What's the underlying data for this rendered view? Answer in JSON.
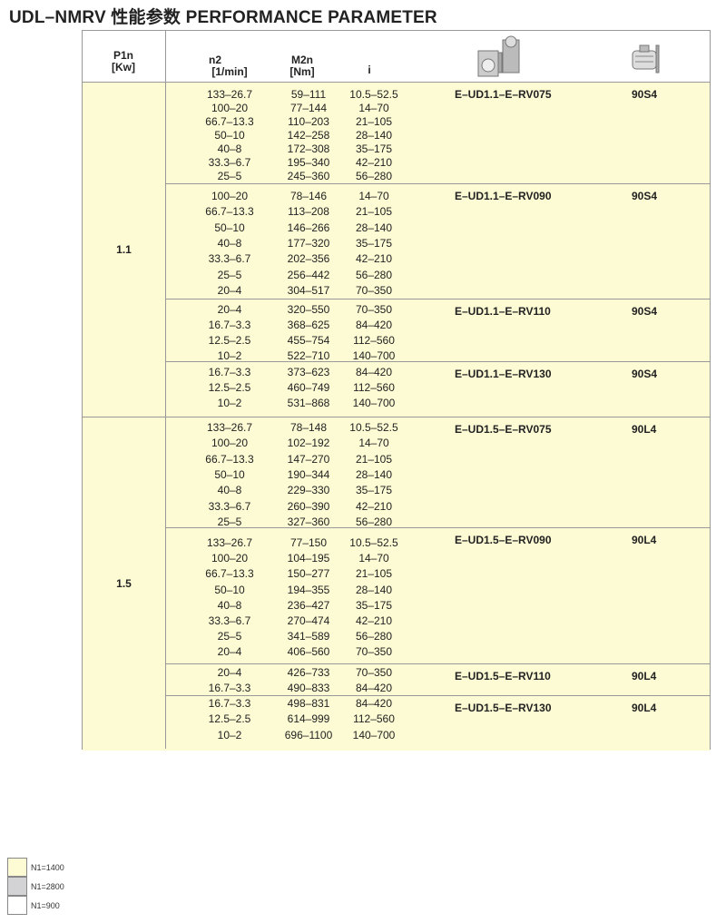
{
  "title": "UDL–NMRV 性能参数  PERFORMANCE PARAMETER",
  "header": {
    "p1n": "P1n",
    "p1n_unit": "[Kw]",
    "n2": "n2",
    "n2_unit": "[1/min]",
    "m2n": "M2n",
    "m2n_unit": "[Nm]",
    "i": "i",
    "gearbox_icon": "worm-gearbox-image",
    "motor_icon": "motor-image"
  },
  "groups": [
    {
      "p1n": "1.1",
      "blocks": [
        {
          "model": "E–UD1.1–E–RV075",
          "motor": "90S4",
          "rows": [
            [
              "133–26.7",
              "59–111",
              "10.5–52.5"
            ],
            [
              "100–20",
              "77–144",
              "14–70"
            ],
            [
              "66.7–13.3",
              "110–203",
              "21–105"
            ],
            [
              "50–10",
              "142–258",
              "28–140"
            ],
            [
              "40–8",
              "172–308",
              "35–175"
            ],
            [
              "33.3–6.7",
              "195–340",
              "42–210"
            ],
            [
              "25–5",
              "245–360",
              "56–280"
            ]
          ]
        },
        {
          "model": "E–UD1.1–E–RV090",
          "motor": "90S4",
          "rows": [
            [
              "100–20",
              "78–146",
              "14–70"
            ],
            [
              "66.7–13.3",
              "113–208",
              "21–105"
            ],
            [
              "50–10",
              "146–266",
              "28–140"
            ],
            [
              "40–8",
              "177–320",
              "35–175"
            ],
            [
              "33.3–6.7",
              "202–356",
              "42–210"
            ],
            [
              "25–5",
              "256–442",
              "56–280"
            ],
            [
              "20–4",
              "304–517",
              "70–350"
            ]
          ]
        },
        {
          "model": "E–UD1.1–E–RV110",
          "motor": "90S4",
          "rows": [
            [
              "20–4",
              "320–550",
              "70–350"
            ],
            [
              "16.7–3.3",
              "368–625",
              "84–420"
            ],
            [
              "12.5–2.5",
              "455–754",
              "112–560"
            ],
            [
              "10–2",
              "522–710",
              "140–700"
            ]
          ]
        },
        {
          "model": "E–UD1.1–E–RV130",
          "motor": "90S4",
          "rows": [
            [
              "16.7–3.3",
              "373–623",
              "84–420"
            ],
            [
              "12.5–2.5",
              "460–749",
              "112–560"
            ],
            [
              "10–2",
              "531–868",
              "140–700"
            ]
          ]
        }
      ]
    },
    {
      "p1n": "1.5",
      "blocks": [
        {
          "model": "E–UD1.5–E–RV075",
          "motor": "90L4",
          "rows": [
            [
              "133–26.7",
              "78–148",
              "10.5–52.5"
            ],
            [
              "100–20",
              "102–192",
              "14–70"
            ],
            [
              "66.7–13.3",
              "147–270",
              "21–105"
            ],
            [
              "50–10",
              "190–344",
              "28–140"
            ],
            [
              "40–8",
              "229–330",
              "35–175"
            ],
            [
              "33.3–6.7",
              "260–390",
              "42–210"
            ],
            [
              "25–5",
              "327–360",
              "56–280"
            ]
          ]
        },
        {
          "model": "E–UD1.5–E–RV090",
          "motor": "90L4",
          "rows": [
            [
              "133–26.7",
              "77–150",
              "10.5–52.5"
            ],
            [
              "100–20",
              "104–195",
              "14–70"
            ],
            [
              "66.7–13.3",
              "150–277",
              "21–105"
            ],
            [
              "50–10",
              "194–355",
              "28–140"
            ],
            [
              "40–8",
              "236–427",
              "35–175"
            ],
            [
              "33.3–6.7",
              "270–474",
              "42–210"
            ],
            [
              "25–5",
              "341–589",
              "56–280"
            ],
            [
              "20–4",
              "406–560",
              "70–350"
            ]
          ]
        },
        {
          "model": "E–UD1.5–E–RV110",
          "motor": "90L4",
          "rows": [
            [
              "20–4",
              "426–733",
              "70–350"
            ],
            [
              "16.7–3.3",
              "490–833",
              "84–420"
            ]
          ]
        },
        {
          "model": "E–UD1.5–E–RV130",
          "motor": "90L4",
          "rows": [
            [
              "16.7–3.3",
              "498–831",
              "84–420"
            ],
            [
              "12.5–2.5",
              "614–999",
              "112–560"
            ],
            [
              "10–2",
              "696–1100",
              "140–700"
            ]
          ]
        }
      ]
    }
  ],
  "legend": [
    {
      "label": "N1=1400",
      "color": "#fdfbd3"
    },
    {
      "label": "N1=2800",
      "color": "#d3d3d6"
    },
    {
      "label": "N1=900",
      "color": "#ffffff"
    }
  ]
}
